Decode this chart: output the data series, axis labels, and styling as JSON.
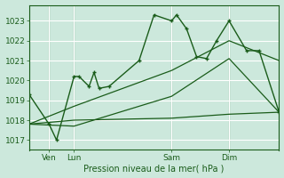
{
  "bg_color": "#cce8dc",
  "grid_color": "#ffffff",
  "line_color": "#1a5c1a",
  "title": "Pression niveau de la mer( hPa )",
  "ylim": [
    1016.5,
    1023.8
  ],
  "yticks": [
    1017,
    1018,
    1019,
    1020,
    1021,
    1022,
    1023
  ],
  "xlim": [
    0,
    100
  ],
  "xlabel_ticks_pos": [
    8,
    18,
    57,
    80
  ],
  "xlabel_ticks_labels": [
    "Ven",
    "Lun",
    "Sam",
    "Dim"
  ],
  "vlines_x": [
    8,
    18,
    57,
    80
  ],
  "series_main": {
    "x": [
      0,
      8,
      11,
      18,
      20,
      24,
      26,
      28,
      32,
      44,
      50,
      57,
      59,
      63,
      67,
      71,
      75,
      80,
      87,
      92,
      100
    ],
    "y": [
      1019.3,
      1017.8,
      1017.0,
      1020.2,
      1020.2,
      1019.7,
      1020.4,
      1019.6,
      1019.7,
      1021.0,
      1023.3,
      1023.0,
      1023.3,
      1022.6,
      1021.2,
      1021.1,
      1022.0,
      1023.0,
      1021.5,
      1021.5,
      1018.4
    ]
  },
  "series_flat": {
    "x": [
      0,
      18,
      57,
      80,
      100
    ],
    "y": [
      1017.8,
      1018.0,
      1018.1,
      1018.3,
      1018.4
    ]
  },
  "series_upper": {
    "x": [
      0,
      18,
      57,
      80,
      100
    ],
    "y": [
      1017.8,
      1018.7,
      1020.5,
      1022.0,
      1021.0
    ]
  },
  "series_lower": {
    "x": [
      0,
      18,
      57,
      80,
      100
    ],
    "y": [
      1017.8,
      1017.7,
      1019.2,
      1021.1,
      1018.4
    ]
  }
}
